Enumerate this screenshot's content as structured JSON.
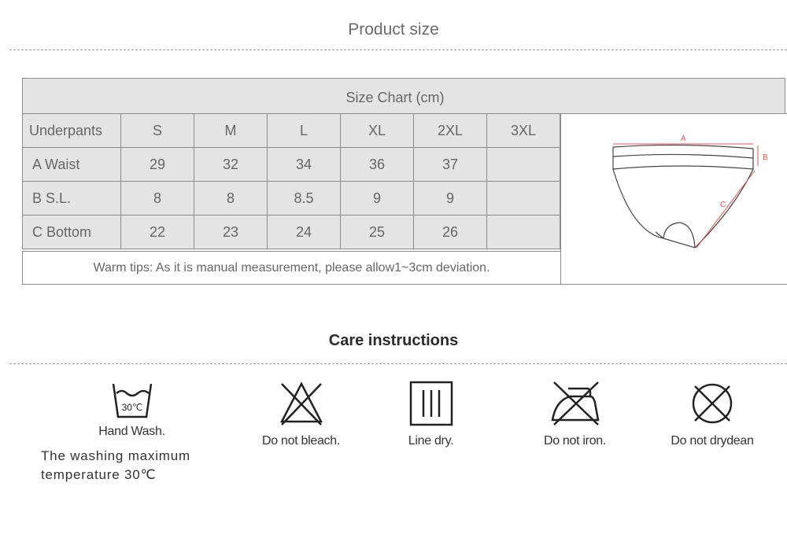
{
  "header": {
    "title": "Product size"
  },
  "size_chart": {
    "title": "Size Chart (cm)",
    "columns": [
      "Underpants",
      "S",
      "M",
      "L",
      "XL",
      "2XL",
      "3XL"
    ],
    "rows": [
      {
        "label": "A Waist",
        "values": [
          "29",
          "32",
          "34",
          "36",
          "37",
          ""
        ]
      },
      {
        "label": "B S.L.",
        "values": [
          "8",
          "8",
          "8.5",
          "9",
          "9",
          ""
        ]
      },
      {
        "label": "C Bottom",
        "values": [
          "22",
          "23",
          "24",
          "25",
          "26",
          ""
        ]
      }
    ],
    "tip": "Warm tips: As it is manual measurement, please allow1~3cm deviation.",
    "diagram_labels": {
      "a": "A",
      "b": "B",
      "c": "C"
    }
  },
  "care": {
    "title": "Care instructions",
    "items": [
      {
        "icon": "hand-wash-30-icon",
        "label": "Hand Wash.",
        "temp": "30℃"
      },
      {
        "icon": "do-not-bleach-icon",
        "label": "Do not bleach."
      },
      {
        "icon": "line-dry-icon",
        "label": "Line dry."
      },
      {
        "icon": "do-not-iron-icon",
        "label": "Do not iron."
      },
      {
        "icon": "do-not-dryclean-icon",
        "label": "Do not drydean"
      }
    ],
    "hand_wash_note": [
      "The washing maximum",
      "temperature 30℃"
    ]
  },
  "colors": {
    "table_bg": "#e4e4e4",
    "border": "#8c8c8c",
    "diagram_red": "#d9534f"
  }
}
